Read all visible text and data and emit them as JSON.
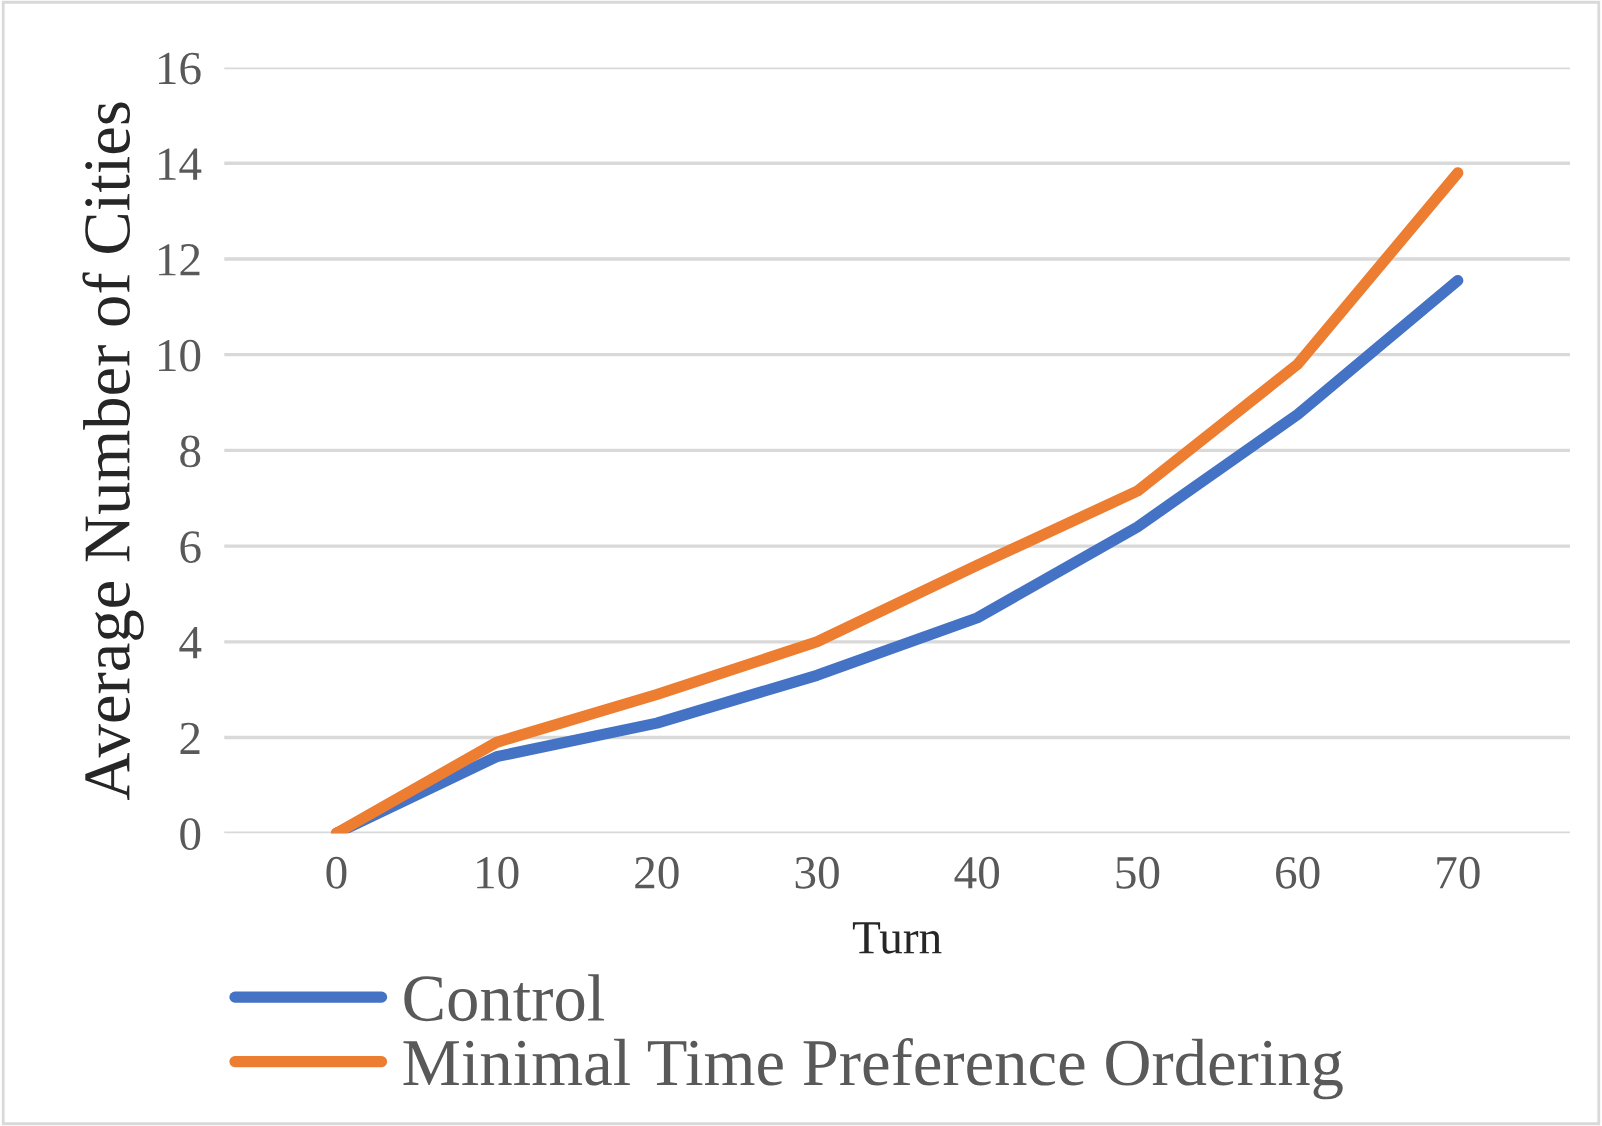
{
  "chart_data": {
    "type": "line",
    "xlabel": "Turn",
    "ylabel": "Average Number of Cities",
    "categories": [
      "0",
      "10",
      "20",
      "30",
      "40",
      "50",
      "60",
      "70"
    ],
    "series": [
      {
        "name": "Control",
        "color": "#4472c4",
        "values": [
          0,
          1.6,
          2.3,
          3.3,
          4.5,
          6.4,
          8.75,
          11.55
        ]
      },
      {
        "name": "Minimal Time Preference Ordering",
        "color": "#ed7d31",
        "values": [
          0,
          1.9,
          2.9,
          4.0,
          5.6,
          7.15,
          9.8,
          13.8
        ]
      }
    ],
    "ylim": [
      0,
      16
    ],
    "yticks": [
      0,
      2,
      4,
      6,
      8,
      10,
      12,
      14,
      16
    ],
    "grid": "y",
    "legend": "bottom left",
    "marker": "none",
    "line_style": "solid"
  }
}
